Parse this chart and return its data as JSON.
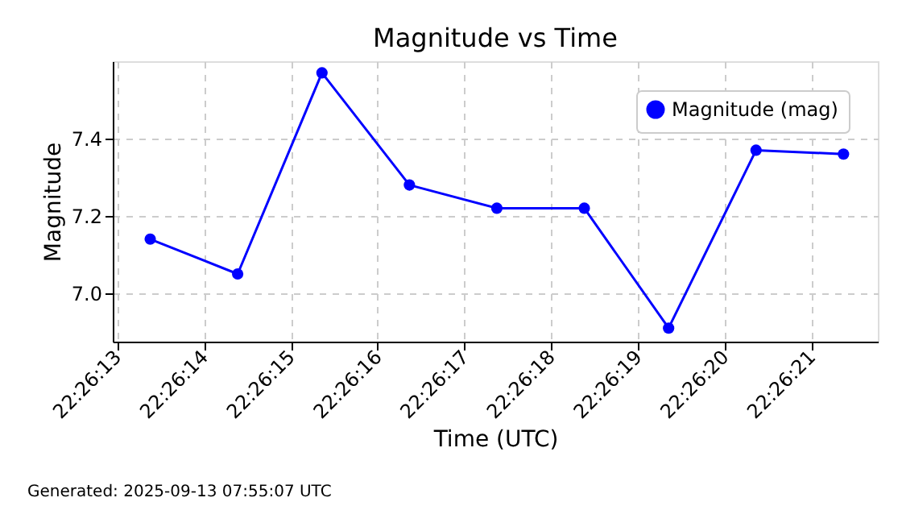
{
  "chart_data": {
    "type": "line",
    "title": "Magnitude vs Time",
    "xlabel": "Time (UTC)",
    "ylabel": "Magnitude",
    "x": [
      22.43705,
      22.43733,
      22.4376,
      22.43788,
      22.43816,
      22.43844,
      22.43871,
      22.43899,
      22.43927
    ],
    "series": [
      {
        "name": "Magnitude (mag)",
        "color": "#0000ff",
        "values": [
          7.14,
          7.05,
          7.57,
          7.28,
          7.22,
          7.22,
          6.91,
          7.37,
          7.36
        ]
      }
    ],
    "xlim": [
      22.43693,
      22.43938
    ],
    "ylim": [
      6.875,
      7.6
    ],
    "xticks": [
      {
        "value": 22.436944,
        "label": "22:26:13"
      },
      {
        "value": 22.437222,
        "label": "22:26:14"
      },
      {
        "value": 22.4375,
        "label": "22:26:15"
      },
      {
        "value": 22.437778,
        "label": "22:26:16"
      },
      {
        "value": 22.438056,
        "label": "22:26:17"
      },
      {
        "value": 22.438333,
        "label": "22:26:18"
      },
      {
        "value": 22.438611,
        "label": "22:26:19"
      },
      {
        "value": 22.438889,
        "label": "22:26:20"
      },
      {
        "value": 22.439167,
        "label": "22:26:21"
      }
    ],
    "yticks": [
      {
        "value": 7.0,
        "label": "7.0"
      },
      {
        "value": 7.2,
        "label": "7.2"
      },
      {
        "value": 7.4,
        "label": "7.4"
      }
    ],
    "grid": true,
    "legend": "top right",
    "marker": "circle",
    "line_style": "solid",
    "annotations": [
      "Generated: 2025-09-13 07:55:07 UTC"
    ]
  }
}
